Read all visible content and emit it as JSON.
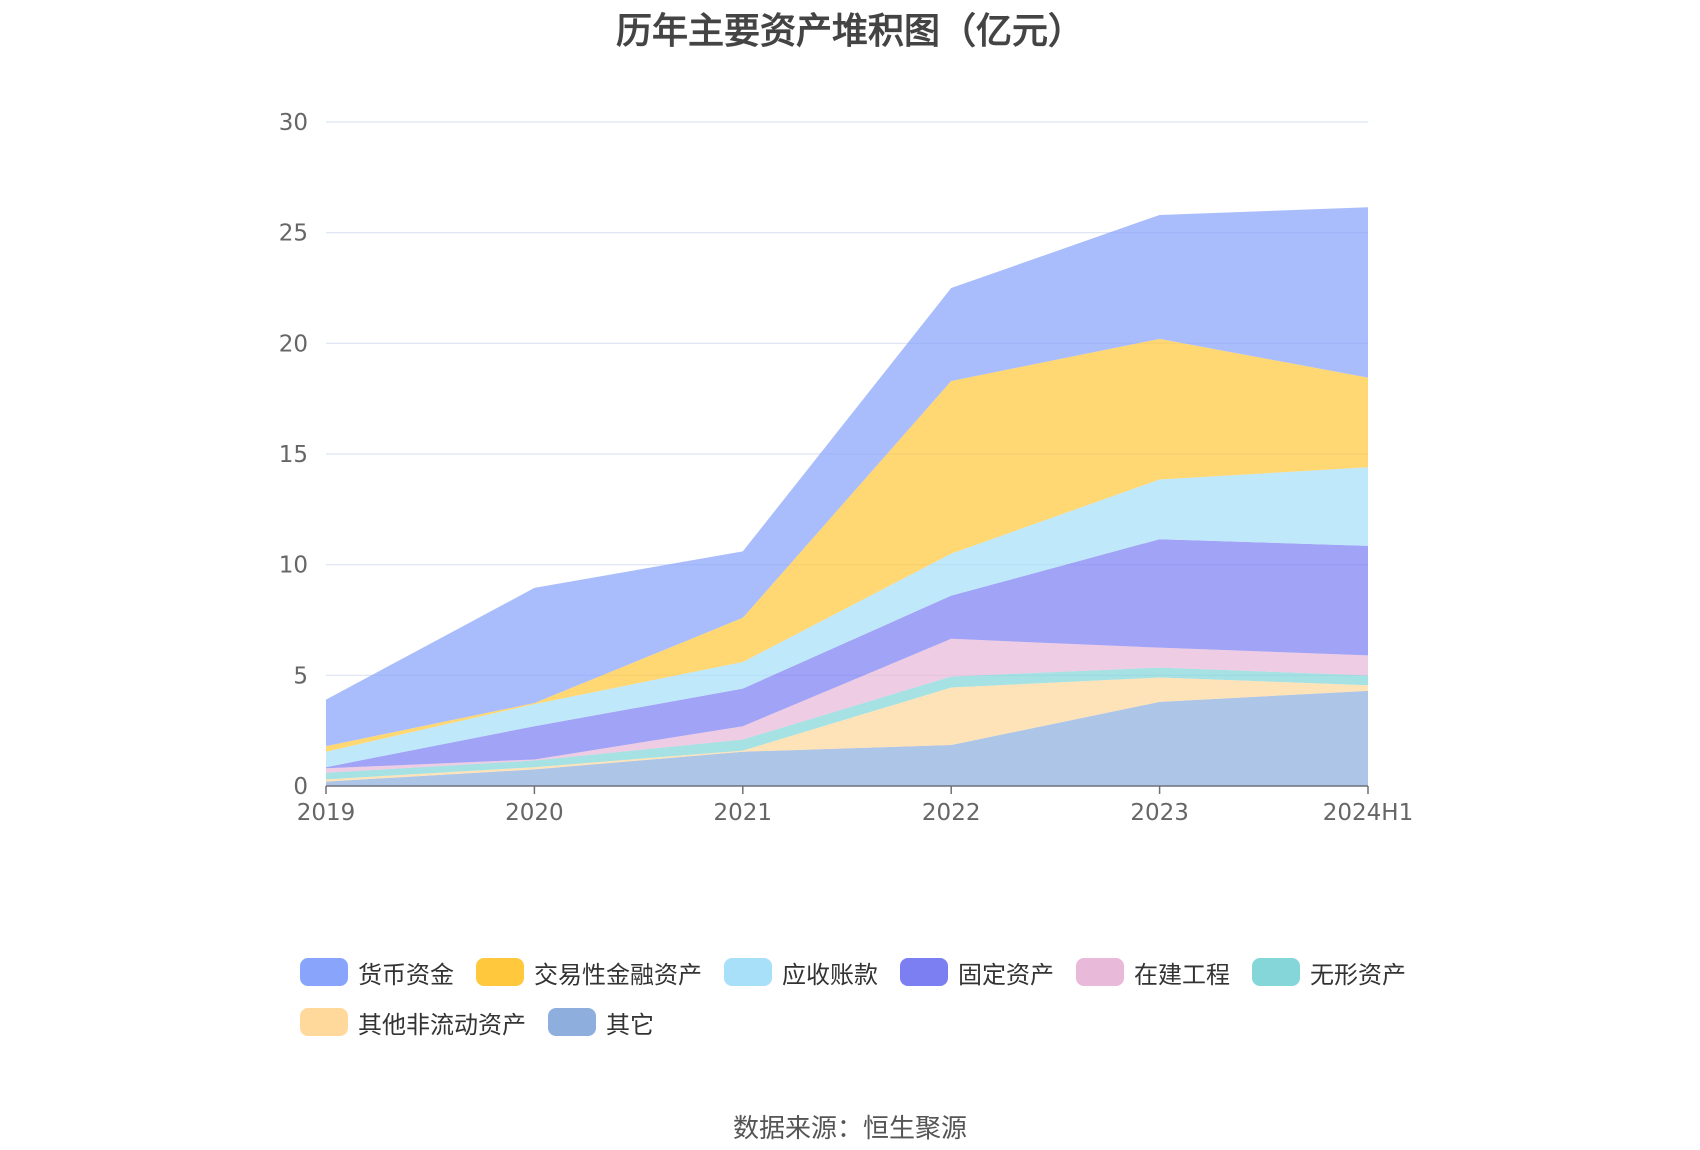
{
  "chart_data": {
    "type": "area",
    "stacked": true,
    "title": "历年主要资产堆积图（亿元）",
    "categories": [
      "2019",
      "2020",
      "2021",
      "2022",
      "2023",
      "2024H1"
    ],
    "ylim": [
      0,
      30
    ],
    "yticks": [
      0,
      5,
      10,
      15,
      20,
      25,
      30
    ],
    "grid": true,
    "legend_position": "bottom",
    "series": [
      {
        "name": "其它",
        "color": "#8eaedd",
        "values": [
          0.2,
          0.75,
          1.55,
          1.85,
          3.8,
          4.3
        ]
      },
      {
        "name": "其他非流动资产",
        "color": "#ffd89c",
        "values": [
          0.1,
          0.1,
          0.05,
          2.6,
          1.1,
          0.25
        ]
      },
      {
        "name": "无形资产",
        "color": "#84d6d9",
        "values": [
          0.3,
          0.3,
          0.5,
          0.5,
          0.45,
          0.45
        ]
      },
      {
        "name": "在建工程",
        "color": "#e8b9d8",
        "values": [
          0.2,
          0.05,
          0.6,
          1.7,
          0.9,
          0.9
        ]
      },
      {
        "name": "固定资产",
        "color": "#7b7ff2",
        "values": [
          0.05,
          1.5,
          1.7,
          1.95,
          4.9,
          4.95
        ]
      },
      {
        "name": "应收账款",
        "color": "#a8dff9",
        "values": [
          0.7,
          1.0,
          1.2,
          1.9,
          2.7,
          3.55
        ]
      },
      {
        "name": "交易性金融资产",
        "color": "#ffc83d",
        "values": [
          0.25,
          0.05,
          2.0,
          7.8,
          6.35,
          4.05
        ]
      },
      {
        "name": "货币资金",
        "color": "#88a4fb",
        "values": [
          2.1,
          5.2,
          3.0,
          4.2,
          5.6,
          7.7
        ]
      }
    ]
  },
  "legend_order": [
    "货币资金",
    "交易性金融资产",
    "应收账款",
    "固定资产",
    "在建工程",
    "无形资产",
    "其他非流动资产",
    "其它"
  ],
  "source_note": "数据来源：恒生聚源"
}
